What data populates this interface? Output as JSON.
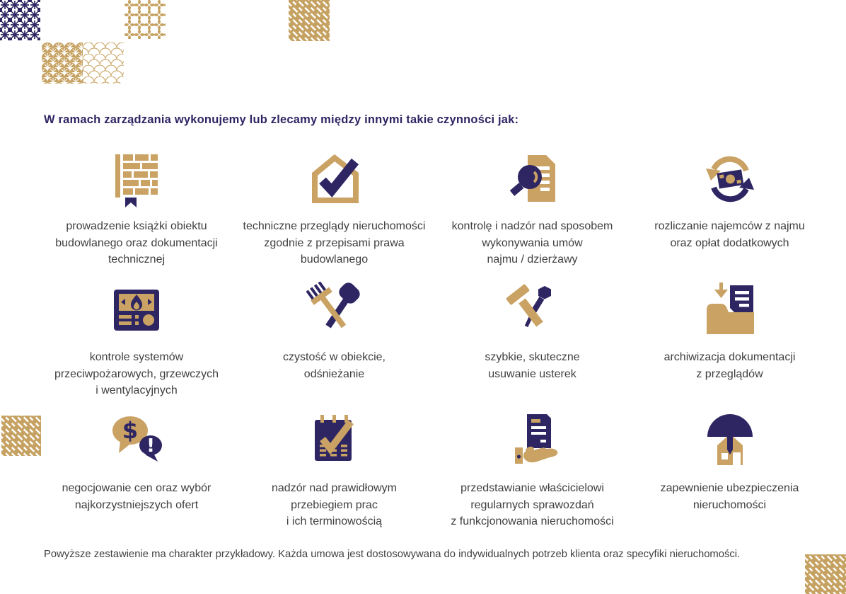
{
  "colors": {
    "navy": "#2d2663",
    "tan": "#c9a264",
    "text": "#3f3f3f"
  },
  "header": {
    "title": "W ramach zarządzania wykonujemy lub zlecamy między innymi takie czynności jak:"
  },
  "grid": {
    "items": [
      {
        "icon": "building-logbook-icon",
        "lines": [
          "prowadzenie książki obiektu",
          "budowlanego oraz dokumentacji",
          "technicznej"
        ]
      },
      {
        "icon": "house-check-icon",
        "lines": [
          "techniczne przeglądy nieruchomości",
          "zgodnie z przepisami prawa",
          "budowlanego"
        ]
      },
      {
        "icon": "document-magnifier-icon",
        "lines": [
          "kontrolę i nadzór nad sposobem",
          "wykonywania umów",
          "najmu / dzierżawy"
        ]
      },
      {
        "icon": "money-cycle-icon",
        "lines": [
          "rozliczanie najemców z najmu",
          "oraz opłat dodatkowych"
        ]
      },
      {
        "icon": "control-panel-icon",
        "lines": [
          "kontrole systemów",
          "przeciwpożarowych, grzewczych",
          "i wentylacyjnych"
        ]
      },
      {
        "icon": "broom-shovel-icon",
        "lines": [
          "czystość w obiekcie,",
          "odśnieżanie"
        ]
      },
      {
        "icon": "hammer-screwdriver-icon",
        "lines": [
          "szybkie, skuteczne",
          "usuwanie usterek"
        ]
      },
      {
        "icon": "archive-folder-icon",
        "lines": [
          "archiwizacja dokumentacji",
          "z przeglądów"
        ]
      },
      {
        "icon": "negotiation-chat-icon",
        "lines": [
          "negocjowanie cen oraz wybór",
          "najkorzystniejszych ofert"
        ]
      },
      {
        "icon": "calendar-check-icon",
        "lines": [
          "nadzór nad prawidłowym",
          "przebiegiem prac",
          "i ich terminowością"
        ]
      },
      {
        "icon": "report-hand-icon",
        "lines": [
          "przedstawianie właścicielowi",
          "regularnych sprawozdań",
          "z funkcjonowania nieruchomości"
        ]
      },
      {
        "icon": "umbrella-house-icon",
        "lines": [
          "zapewnienie ubezpieczenia",
          "nieruchomości"
        ]
      }
    ],
    "chat_bubble_dollar": "$",
    "chat_bubble_exclamation": "!"
  },
  "footer": {
    "note": "Powyższe zestawienie ma charakter przykładowy. Każda umowa jest dostosowywana do indywidualnych potrzeb klienta oraz specyfiki nieruchomości."
  },
  "decor": {
    "tiles": [
      "navy-floral",
      "gold-diamond-flower",
      "gold-fret",
      "gold-shell",
      "gold-scale",
      "gold-fret",
      "gold-fret"
    ]
  }
}
